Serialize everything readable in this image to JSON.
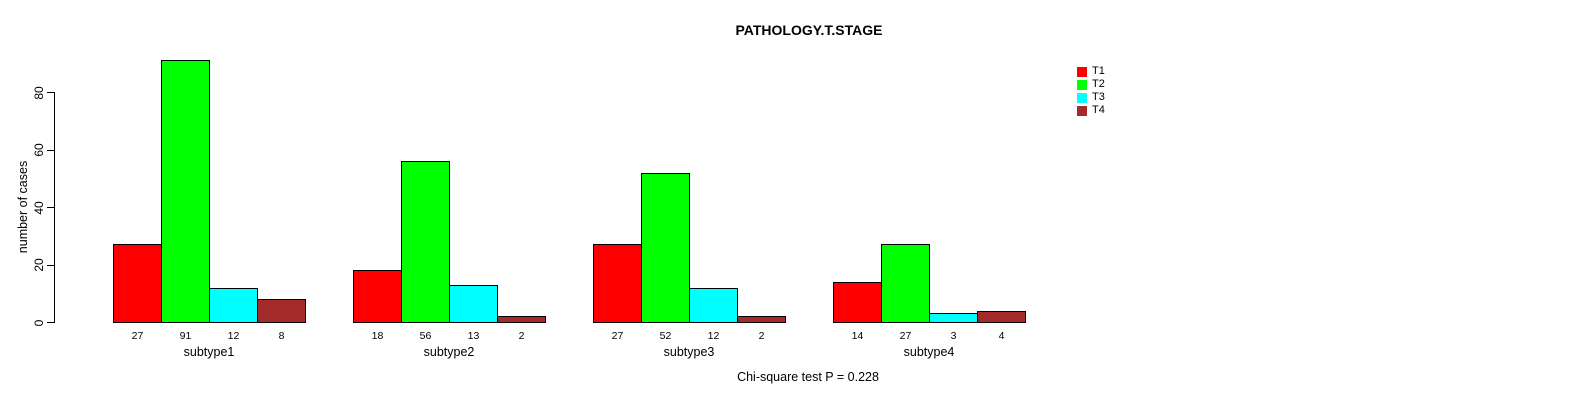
{
  "chart_data": {
    "type": "bar",
    "title": "PATHOLOGY.T.STAGE",
    "xlabel": "",
    "ylabel": "number of cases",
    "categories": [
      "subtype1",
      "subtype2",
      "subtype3",
      "subtype4"
    ],
    "series": [
      {
        "name": "T1",
        "color": "#ff0000",
        "values": [
          27,
          18,
          27,
          14
        ]
      },
      {
        "name": "T2",
        "color": "#00ff00",
        "values": [
          91,
          56,
          52,
          27
        ]
      },
      {
        "name": "T3",
        "color": "#00ffff",
        "values": [
          12,
          13,
          12,
          3
        ]
      },
      {
        "name": "T4",
        "color": "#a52a2a",
        "values": [
          8,
          2,
          2,
          4
        ]
      }
    ],
    "yticks": [
      0,
      20,
      40,
      60,
      80
    ],
    "ylim": [
      0,
      91
    ],
    "grid": false,
    "show_bar_value_labels": true,
    "legend_position": "top-right",
    "annotation": "Chi-square test P = 0.228"
  }
}
